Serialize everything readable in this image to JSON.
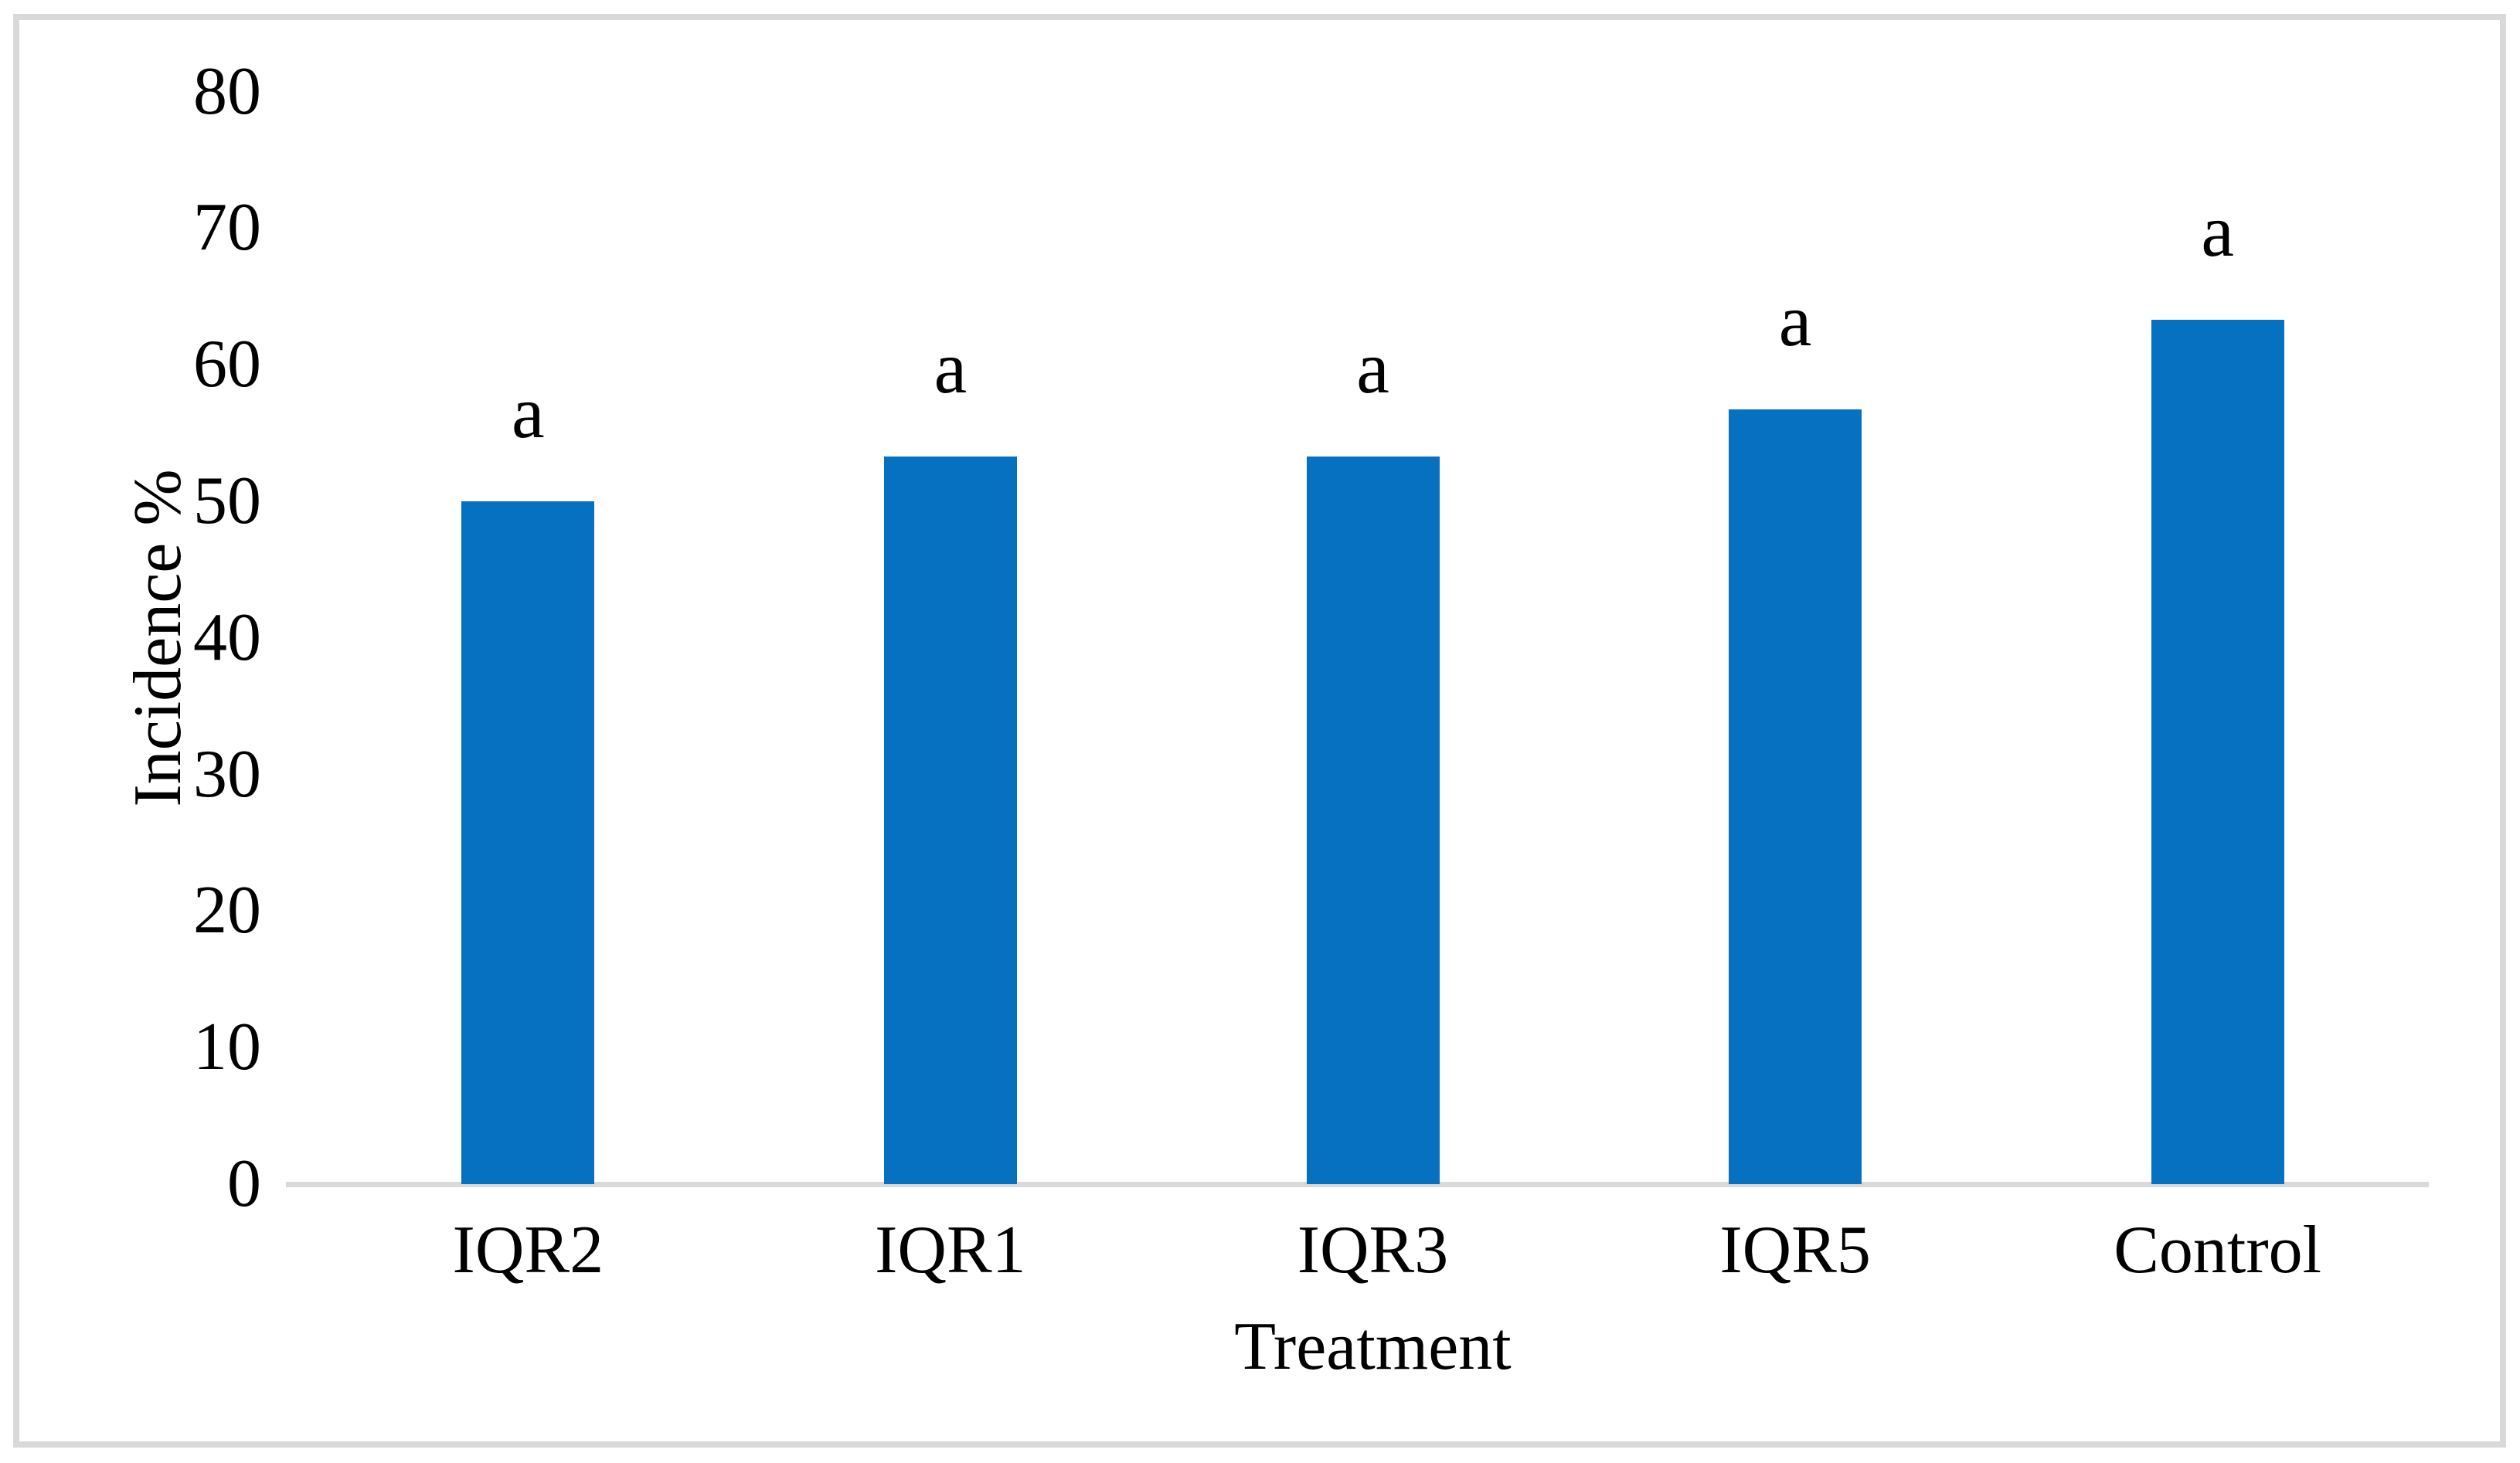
{
  "figure": {
    "background_color": "#FFFFFF",
    "frame_color": "#D9D9D9"
  },
  "chart_data": {
    "type": "bar",
    "title": "",
    "categories": [
      "IQR2",
      "IQR1",
      "IQR3",
      "IQR5",
      "Control"
    ],
    "values": [
      50,
      53.3,
      53.3,
      56.7,
      63.3
    ],
    "bar_labels": [
      "a",
      "a",
      "a",
      "a",
      "a"
    ],
    "xlabel": "Treatment",
    "ylabel": "Incidence %",
    "ylim": [
      0,
      80
    ],
    "yticks": [
      0,
      10,
      20,
      30,
      40,
      50,
      60,
      70,
      80
    ],
    "grid": false,
    "legend": false,
    "bar_color": "#0671C1",
    "axis_line_color": "#D9D9D9",
    "text_color": "#000000"
  }
}
